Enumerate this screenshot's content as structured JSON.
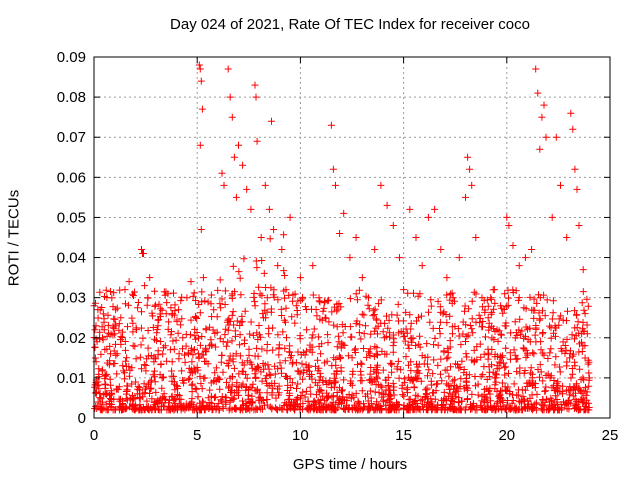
{
  "chart_data": {
    "type": "scatter",
    "title": "Day 024 of 2021, Rate Of TEC Index for receiver coco",
    "xlabel": "GPS time / hours",
    "ylabel": "ROTI / TECUs",
    "xlim": [
      0,
      25
    ],
    "ylim": [
      0,
      0.09
    ],
    "xticks": [
      0,
      5,
      10,
      15,
      20,
      25
    ],
    "yticks": [
      0,
      0.01,
      0.02,
      0.03,
      0.04,
      0.05,
      0.06,
      0.07,
      0.08,
      0.09
    ],
    "grid": true,
    "marker": "+",
    "color": "#ff0000",
    "series": [
      {
        "points": [
          [
            0.0,
            0.028
          ],
          [
            0.05,
            0.022
          ],
          [
            0.1,
            0.014
          ],
          [
            0.15,
            0.008
          ],
          [
            0.2,
            0.004
          ],
          [
            0.3,
            0.027
          ],
          [
            0.4,
            0.012
          ],
          [
            0.6,
            0.006
          ],
          [
            0.8,
            0.016
          ],
          [
            1.0,
            0.021
          ],
          [
            1.1,
            0.011
          ],
          [
            1.3,
            0.025
          ],
          [
            1.5,
            0.032
          ],
          [
            1.6,
            0.008
          ],
          [
            1.7,
            0.034
          ],
          [
            1.9,
            0.018
          ],
          [
            2.1,
            0.006
          ],
          [
            2.3,
            0.042
          ],
          [
            2.35,
            0.041
          ],
          [
            2.4,
            0.041
          ],
          [
            2.45,
            0.033
          ],
          [
            2.6,
            0.03
          ],
          [
            2.7,
            0.035
          ],
          [
            2.9,
            0.014
          ],
          [
            3.1,
            0.023
          ],
          [
            3.3,
            0.01
          ],
          [
            3.5,
            0.026
          ],
          [
            3.7,
            0.017
          ],
          [
            3.9,
            0.009
          ],
          [
            4.1,
            0.027
          ],
          [
            4.3,
            0.02
          ],
          [
            4.5,
            0.03
          ],
          [
            4.7,
            0.034
          ],
          [
            4.9,
            0.012
          ],
          [
            5.1,
            0.088
          ],
          [
            5.15,
            0.087
          ],
          [
            5.2,
            0.084
          ],
          [
            5.25,
            0.077
          ],
          [
            5.15,
            0.068
          ],
          [
            5.2,
            0.047
          ],
          [
            5.3,
            0.035
          ],
          [
            5.6,
            0.018
          ],
          [
            5.8,
            0.027
          ],
          [
            6.0,
            0.01
          ],
          [
            6.2,
            0.061
          ],
          [
            6.3,
            0.058
          ],
          [
            6.5,
            0.087
          ],
          [
            6.6,
            0.08
          ],
          [
            6.7,
            0.075
          ],
          [
            6.8,
            0.065
          ],
          [
            6.9,
            0.055
          ],
          [
            7.0,
            0.068
          ],
          [
            7.2,
            0.063
          ],
          [
            7.4,
            0.057
          ],
          [
            7.6,
            0.052
          ],
          [
            7.8,
            0.083
          ],
          [
            7.85,
            0.08
          ],
          [
            7.9,
            0.069
          ],
          [
            8.1,
            0.045
          ],
          [
            8.3,
            0.058
          ],
          [
            8.5,
            0.052
          ],
          [
            8.6,
            0.074
          ],
          [
            8.7,
            0.047
          ],
          [
            8.9,
            0.038
          ],
          [
            9.1,
            0.042
          ],
          [
            9.3,
            0.032
          ],
          [
            9.5,
            0.05
          ],
          [
            9.8,
            0.028
          ],
          [
            10.0,
            0.035
          ],
          [
            10.3,
            0.022
          ],
          [
            10.6,
            0.038
          ],
          [
            10.9,
            0.03
          ],
          [
            11.2,
            0.025
          ],
          [
            11.5,
            0.073
          ],
          [
            11.6,
            0.062
          ],
          [
            11.7,
            0.058
          ],
          [
            11.9,
            0.046
          ],
          [
            12.1,
            0.051
          ],
          [
            12.4,
            0.04
          ],
          [
            12.7,
            0.045
          ],
          [
            13.0,
            0.035
          ],
          [
            13.3,
            0.03
          ],
          [
            13.6,
            0.042
          ],
          [
            13.9,
            0.058
          ],
          [
            14.2,
            0.053
          ],
          [
            14.5,
            0.048
          ],
          [
            14.8,
            0.04
          ],
          [
            15.0,
            0.032
          ],
          [
            15.3,
            0.052
          ],
          [
            15.6,
            0.045
          ],
          [
            15.9,
            0.038
          ],
          [
            16.2,
            0.05
          ],
          [
            16.5,
            0.052
          ],
          [
            16.8,
            0.042
          ],
          [
            17.1,
            0.035
          ],
          [
            17.4,
            0.03
          ],
          [
            17.7,
            0.04
          ],
          [
            18.0,
            0.055
          ],
          [
            18.1,
            0.065
          ],
          [
            18.2,
            0.062
          ],
          [
            18.3,
            0.058
          ],
          [
            18.5,
            0.045
          ],
          [
            18.8,
            0.03
          ],
          [
            19.1,
            0.025
          ],
          [
            19.4,
            0.032
          ],
          [
            19.7,
            0.028
          ],
          [
            20.0,
            0.05
          ],
          [
            20.1,
            0.048
          ],
          [
            20.3,
            0.043
          ],
          [
            20.6,
            0.038
          ],
          [
            20.9,
            0.04
          ],
          [
            21.2,
            0.042
          ],
          [
            21.4,
            0.087
          ],
          [
            21.5,
            0.081
          ],
          [
            21.6,
            0.067
          ],
          [
            21.7,
            0.075
          ],
          [
            21.8,
            0.078
          ],
          [
            21.9,
            0.07
          ],
          [
            22.2,
            0.05
          ],
          [
            22.4,
            0.07
          ],
          [
            22.6,
            0.058
          ],
          [
            22.9,
            0.045
          ],
          [
            23.1,
            0.076
          ],
          [
            23.2,
            0.072
          ],
          [
            23.3,
            0.062
          ],
          [
            23.4,
            0.057
          ],
          [
            23.5,
            0.048
          ],
          [
            23.7,
            0.037
          ],
          [
            23.9,
            0.021
          ],
          [
            24.0,
            0.01
          ]
        ]
      }
    ]
  }
}
